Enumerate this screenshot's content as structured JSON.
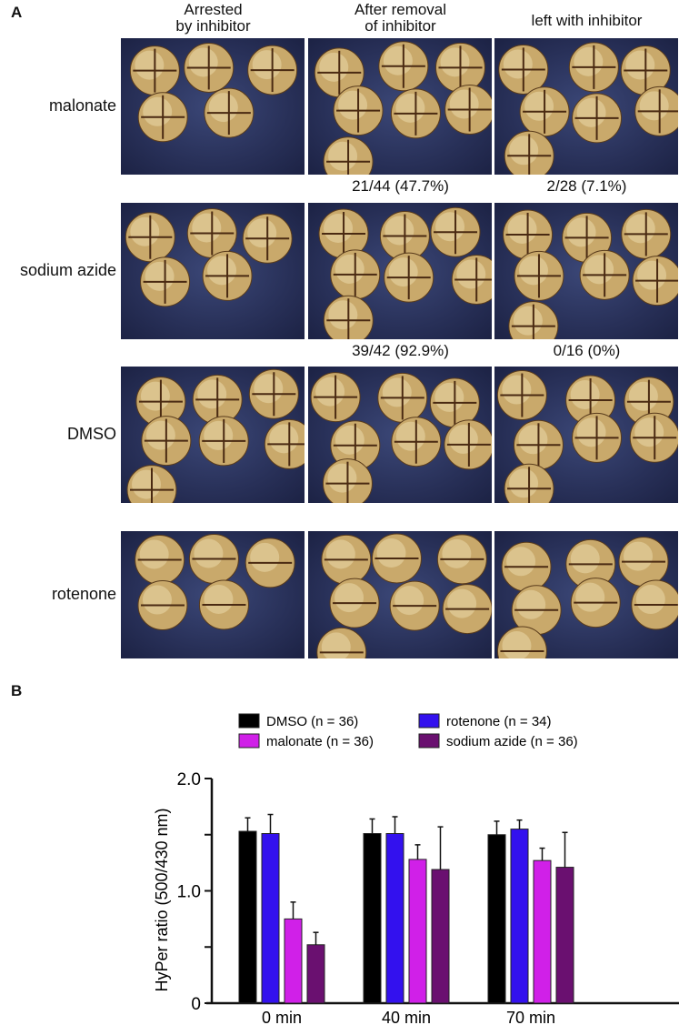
{
  "panel_a": {
    "letter": "A",
    "columns": [
      "Arrested\nby inhibitor",
      "After removal\nof inhibitor",
      "left with inhibitor"
    ],
    "rows": [
      {
        "label": "malonate",
        "ratios": [
          "",
          "21/44 (47.7%)",
          "2/28 (7.1%)"
        ]
      },
      {
        "label": "sodium azide",
        "ratios": [
          "",
          "39/42 (92.9%)",
          "0/16 (0%)"
        ]
      },
      {
        "label": "DMSO",
        "ratios": [
          "",
          "",
          ""
        ]
      },
      {
        "label": "rotenone",
        "ratios": [
          "",
          "",
          ""
        ]
      }
    ]
  },
  "panel_b": {
    "letter": "B"
  },
  "chart_data": {
    "type": "bar",
    "categories": [
      "0 min",
      "40 min",
      "70 min"
    ],
    "ylabel": "HyPer ratio (500/430 nm)",
    "ylim": [
      0,
      2.0
    ],
    "yticks": [
      "0",
      "1.0",
      "2.0"
    ],
    "legend_placement": "top",
    "series": [
      {
        "name": "DMSO (n = 36)",
        "color": "#000000",
        "values": [
          1.53,
          1.51,
          1.5
        ],
        "error": [
          0.12,
          0.13,
          0.12
        ]
      },
      {
        "name": "rotenone (n = 34)",
        "color": "#3311ee",
        "values": [
          1.51,
          1.51,
          1.55
        ],
        "error": [
          0.17,
          0.15,
          0.08
        ]
      },
      {
        "name": "malonate (n = 36)",
        "color": "#d020e8",
        "values": [
          0.75,
          1.28,
          1.27
        ],
        "error": [
          0.15,
          0.13,
          0.11
        ]
      },
      {
        "name": "sodium azide (n = 36)",
        "color": "#6a1070",
        "values": [
          0.52,
          1.19,
          1.21
        ],
        "error": [
          0.11,
          0.38,
          0.31
        ]
      }
    ]
  }
}
